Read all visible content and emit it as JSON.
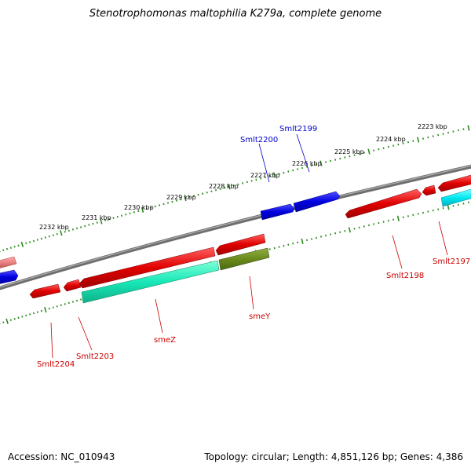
{
  "title": "Stenotrophomonas maltophilia K279a, complete genome",
  "footer": {
    "accession": "Accession: NC_010943",
    "summary": "Topology: circular; Length: 4,851,126 bp; Genes: 4,386"
  },
  "colors": {
    "backbone": "#7a7a7a",
    "tick_green": "#2e8b20",
    "gene_red": "#e00000",
    "gene_pink": "#e88080",
    "gene_blue": "#0000e0",
    "gene_teal": "#18e8b8",
    "gene_olive": "#6a8a1e",
    "gene_cyan": "#00e8f0",
    "label_red": "#cc0000",
    "label_blue": "#0000cc"
  },
  "ticks": [
    "2223 kbp",
    "2224 kbp",
    "2225 kbp",
    "2226 kbp",
    "2227 kbp",
    "2228 kbp",
    "2229 kbp",
    "2230 kbp",
    "2231 kbp",
    "2232 kbp"
  ],
  "gene_labels": [
    {
      "name": "Smlt2199",
      "color": "blue"
    },
    {
      "name": "Smlt2200",
      "color": "blue"
    },
    {
      "name": "Smlt2197",
      "color": "red"
    },
    {
      "name": "Smlt2198",
      "color": "red"
    },
    {
      "name": "smeY",
      "color": "red"
    },
    {
      "name": "smeZ",
      "color": "red"
    },
    {
      "name": "Smlt2203",
      "color": "red"
    },
    {
      "name": "Smlt2204",
      "color": "red"
    }
  ]
}
